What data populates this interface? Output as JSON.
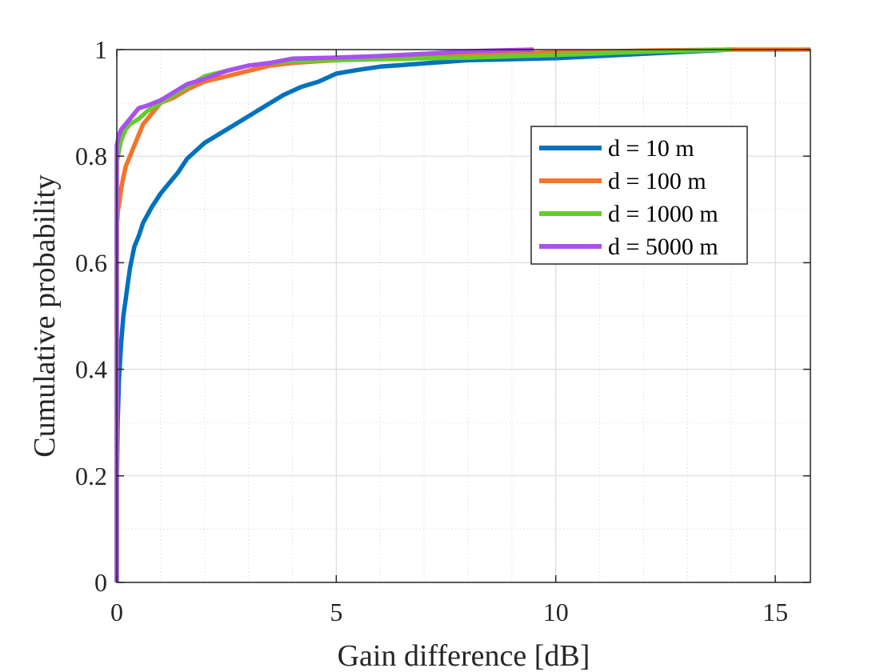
{
  "chart_data": {
    "type": "line",
    "title": "",
    "xlabel": "Gain difference [dB]",
    "ylabel": "Cumulative probability",
    "xlim": [
      0,
      15.8
    ],
    "ylim": [
      0,
      1
    ],
    "xticks": [
      0,
      5,
      10,
      15
    ],
    "yticks": [
      0,
      0.2,
      0.4,
      0.6,
      0.8,
      1
    ],
    "xtick_labels": [
      "0",
      "5",
      "10",
      "15"
    ],
    "ytick_labels": [
      "0",
      "0.2",
      "0.4",
      "0.6",
      "0.8",
      "1"
    ],
    "x_minor_step": 1,
    "y_minor_step": 0.1,
    "grid": true,
    "legend_position": "upper-right",
    "series": [
      {
        "name": "d = 10 m",
        "color": "#0072bd",
        "x": [
          0,
          0,
          0.02,
          0.05,
          0.1,
          0.15,
          0.2,
          0.25,
          0.3,
          0.4,
          0.5,
          0.6,
          0.7,
          0.8,
          1.0,
          1.2,
          1.4,
          1.6,
          1.8,
          2.0,
          2.3,
          2.6,
          3.0,
          3.4,
          3.8,
          4.2,
          4.6,
          5.0,
          5.5,
          6.0,
          7.0,
          8.0,
          10.0,
          12.0,
          14.0
        ],
        "values": [
          0,
          0.18,
          0.3,
          0.38,
          0.45,
          0.5,
          0.53,
          0.56,
          0.59,
          0.63,
          0.65,
          0.675,
          0.69,
          0.705,
          0.73,
          0.75,
          0.77,
          0.795,
          0.81,
          0.825,
          0.84,
          0.855,
          0.875,
          0.895,
          0.915,
          0.93,
          0.94,
          0.955,
          0.962,
          0.968,
          0.974,
          0.98,
          0.984,
          0.992,
          1.0
        ]
      },
      {
        "name": "d = 100 m",
        "color": "#f5732a",
        "x": [
          0,
          0,
          0.03,
          0.07,
          0.1,
          0.15,
          0.2,
          0.3,
          0.4,
          0.5,
          0.6,
          0.8,
          1.0,
          1.3,
          1.6,
          2.0,
          2.5,
          3.0,
          3.5,
          4.0,
          5.0,
          6.0,
          8.0,
          10.0,
          12.0,
          14.0,
          15.8
        ],
        "values": [
          0,
          0.67,
          0.7,
          0.72,
          0.74,
          0.76,
          0.78,
          0.8,
          0.82,
          0.84,
          0.86,
          0.88,
          0.9,
          0.91,
          0.925,
          0.94,
          0.95,
          0.96,
          0.97,
          0.975,
          0.98,
          0.985,
          0.99,
          0.995,
          0.998,
          1.0,
          1.0
        ]
      },
      {
        "name": "d = 1000 m",
        "color": "#66cc2a",
        "x": [
          0,
          0,
          0.05,
          0.1,
          0.2,
          0.3,
          0.5,
          0.7,
          1.0,
          1.3,
          1.6,
          2.0,
          2.5,
          3.0,
          3.5,
          4.0,
          5.0,
          6.0,
          8.0,
          10.0,
          12.0,
          14.0
        ],
        "values": [
          0,
          0.79,
          0.81,
          0.83,
          0.85,
          0.86,
          0.87,
          0.885,
          0.9,
          0.915,
          0.93,
          0.95,
          0.96,
          0.97,
          0.975,
          0.978,
          0.98,
          0.982,
          0.985,
          0.99,
          0.996,
          1.0
        ]
      },
      {
        "name": "d = 5000 m",
        "color": "#a950f0",
        "x": [
          0,
          0,
          0.05,
          0.1,
          0.2,
          0.3,
          0.4,
          0.5,
          0.7,
          1.0,
          1.3,
          1.6,
          2.0,
          2.5,
          3.0,
          3.5,
          4.0,
          5.0,
          6.0,
          7.0,
          8.0,
          9.5
        ],
        "values": [
          0,
          0.82,
          0.84,
          0.85,
          0.86,
          0.87,
          0.88,
          0.89,
          0.895,
          0.905,
          0.92,
          0.935,
          0.945,
          0.96,
          0.97,
          0.975,
          0.983,
          0.985,
          0.988,
          0.992,
          0.997,
          1.0
        ]
      }
    ]
  }
}
